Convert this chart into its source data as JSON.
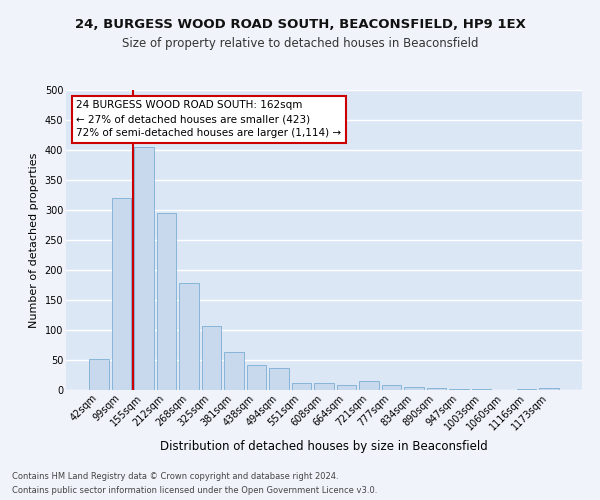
{
  "title1": "24, BURGESS WOOD ROAD SOUTH, BEACONSFIELD, HP9 1EX",
  "title2": "Size of property relative to detached houses in Beaconsfield",
  "xlabel": "Distribution of detached houses by size in Beaconsfield",
  "ylabel": "Number of detached properties",
  "footer1": "Contains HM Land Registry data © Crown copyright and database right 2024.",
  "footer2": "Contains public sector information licensed under the Open Government Licence v3.0.",
  "annotation_line1": "24 BURGESS WOOD ROAD SOUTH: 162sqm",
  "annotation_line2": "← 27% of detached houses are smaller (423)",
  "annotation_line3": "72% of semi-detached houses are larger (1,114) →",
  "bar_labels": [
    "42sqm",
    "99sqm",
    "155sqm",
    "212sqm",
    "268sqm",
    "325sqm",
    "381sqm",
    "438sqm",
    "494sqm",
    "551sqm",
    "608sqm",
    "664sqm",
    "721sqm",
    "777sqm",
    "834sqm",
    "890sqm",
    "947sqm",
    "1003sqm",
    "1060sqm",
    "1116sqm",
    "1173sqm"
  ],
  "bar_values": [
    52,
    320,
    405,
    295,
    178,
    107,
    63,
    41,
    36,
    11,
    11,
    9,
    15,
    9,
    5,
    3,
    1,
    1,
    0,
    1,
    4
  ],
  "bar_color": "#c8d9ee",
  "bar_edge_color": "#7bafd4",
  "vline_color": "#cc0000",
  "vline_x": 1.5,
  "annotation_box_edgecolor": "#cc0000",
  "fig_facecolor": "#f0f4fa",
  "ax_facecolor": "#dce7f5",
  "grid_color": "#ffffff",
  "ylim": [
    0,
    500
  ],
  "yticks": [
    0,
    50,
    100,
    150,
    200,
    250,
    300,
    350,
    400,
    450,
    500
  ],
  "title1_fontsize": 9.5,
  "title2_fontsize": 8.5,
  "xlabel_fontsize": 8.5,
  "ylabel_fontsize": 8,
  "tick_fontsize": 7,
  "annot_fontsize": 7.5,
  "footer_fontsize": 6
}
